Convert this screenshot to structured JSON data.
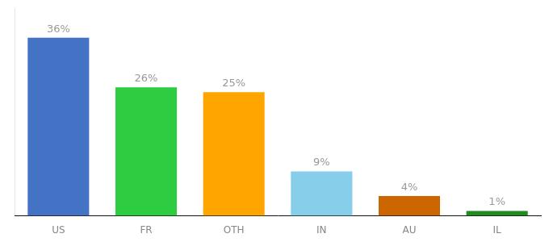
{
  "chart_data": {
    "type": "bar",
    "categories": [
      "US",
      "FR",
      "OTH",
      "IN",
      "AU",
      "IL"
    ],
    "values": [
      36,
      26,
      25,
      9,
      4,
      1
    ],
    "value_labels": [
      "36%",
      "26%",
      "25%",
      "9%",
      "4%",
      "1%"
    ],
    "colors": [
      "#4472C4",
      "#2ECC40",
      "#FFA500",
      "#87CEEB",
      "#CC6600",
      "#228B22"
    ],
    "ylim": [
      0,
      42
    ],
    "grid": false,
    "legend": false,
    "data_labels": true,
    "tick_labels": "x"
  }
}
